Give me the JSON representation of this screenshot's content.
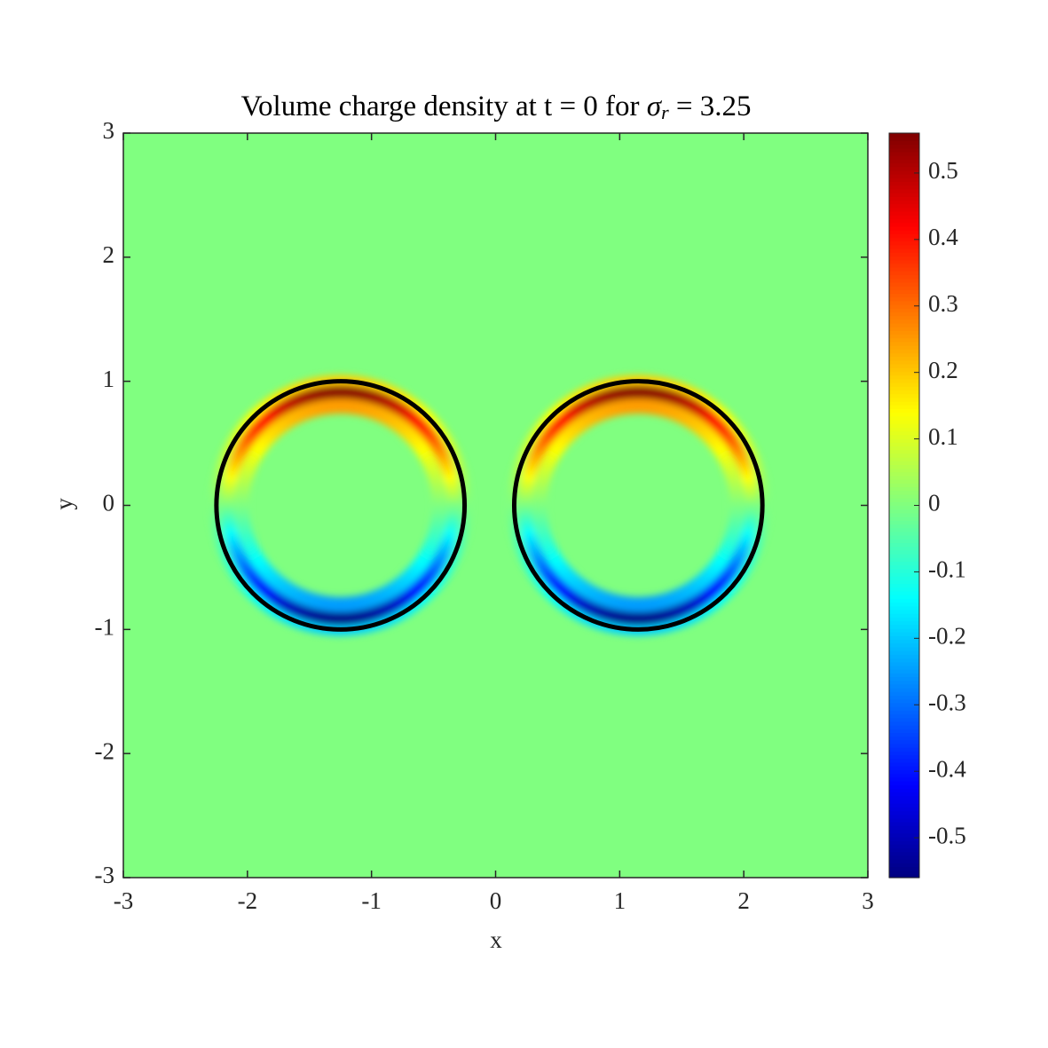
{
  "chart_data": {
    "type": "heatmap",
    "title": {
      "text": "Volume charge density at t = 0 for ",
      "symbol": "σ",
      "subscript": "r",
      "rest": " = 3.25"
    },
    "xlabel": "x",
    "ylabel": "y",
    "xlim": [
      -3,
      3
    ],
    "ylim": [
      -3,
      3
    ],
    "xticks": [
      -3,
      -2,
      -1,
      0,
      1,
      2,
      3
    ],
    "yticks": [
      -3,
      -2,
      -1,
      0,
      1,
      2,
      3
    ],
    "colormap": "jet",
    "clim": [
      -0.56,
      0.56
    ],
    "cticks": [
      -0.5,
      -0.4,
      -0.3,
      -0.2,
      -0.1,
      0,
      0.1,
      0.2,
      0.3,
      0.4,
      0.5
    ],
    "background_value": 0,
    "peak_value": 0.55,
    "circles": [
      {
        "cx": -1.25,
        "cy": 0,
        "r": 1
      },
      {
        "cx": 1.15,
        "cy": 0,
        "r": 1
      }
    ],
    "outline_color": "#000000"
  }
}
